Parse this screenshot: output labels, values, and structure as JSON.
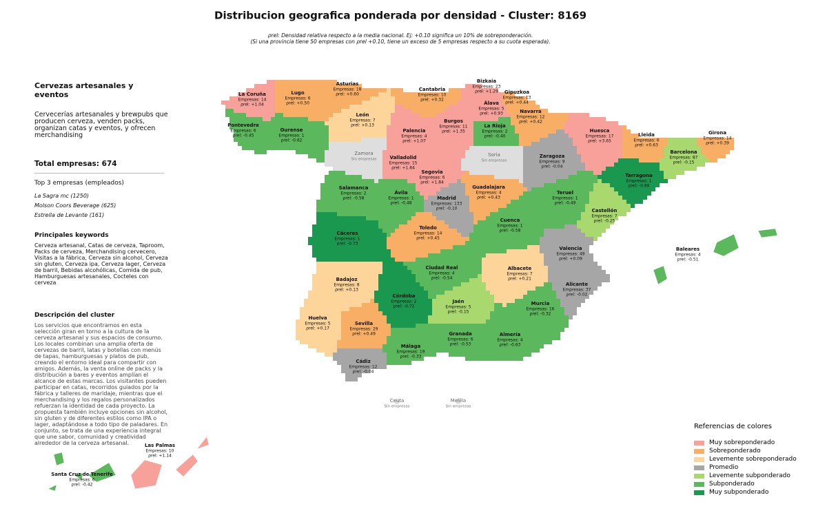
{
  "header": {
    "title": "Distribucion geografica ponderada por densidad - Cluster: 8169",
    "subtitle": [
      "ρrel: Densidad relativa respecto a la media nacional. Ej: +0.10 significa un 10% de sobreponderación.",
      "(Si una provincia tiene 50 empresas con ρrel +0.10, tiene un exceso de 5 empresas respecto a su cuota esperada)."
    ]
  },
  "sidebar": {
    "title": "Cervezas artesanales y eventos",
    "summary": "Cervecerías artesanales y brewpubs que producen cerveza, venden packs, organizan catas y eventos, y ofrecen merchandising",
    "total": "Total empresas: 674",
    "top_heading": "Top 3 empresas (empleados)",
    "top": [
      "La Sagra mc (1250)",
      "Molson Coors Beverage (625)",
      "Estrella de Levante (161)"
    ],
    "keywords_heading": "Principales keywords",
    "keywords": "Cerveza artesanal, Catas de cerveza, Taproom, Packs de cerveza, Merchandising cervecero, Visitas a la fábrica, Cerveza sin alcohol, Cerveza sin gluten, Cerveza ipa, Cerveza lager, Cerveza de barril, Bebidas alcohólicas, Comida de pub, Hamburguesas artesanales, Cocteles con cerveza",
    "description_heading": "Descripción del cluster",
    "description": "Los servicios que encontramos en esta selección giran en torno a la cultura de la cerveza artesanal y sus espacios de consumo. Los locales combinan una amplia oferta de cervezas de barril, latas y botellas con menús de tapas, hamburguesas y platos de pub, creando el entorno ideal para compartir con amigos. Además, la venta online de packs y la distribución a bares y eventos amplían el alcance de estas marcas. Los visitantes pueden participar en catas, recorridos guiados por la fábrica y talleres de maridaje, mientras que el merchandising y los regalos personalizados refuerzan la identidad de cada proyecto. La propuesta también incluye opciones sin alcohol, sin gluten y de diferentes estilos como IPA o lager, adaptándose a todo tipo de paladares. En conjunto, se trata de una experiencia integral que une sabor, comunidad y creatividad alrededor de la cerveza artesanal."
  },
  "provinces": [
    {
      "name": "La Coruña",
      "empresas": "Empresas: 14",
      "rho": "ρrel: +1.04",
      "color": "#f7a19a"
    },
    {
      "name": "Lugo",
      "empresas": "Empresas: 6",
      "rho": "ρrel: +0.50",
      "color": "#f9ae65"
    },
    {
      "name": "Asturias",
      "empresas": "Empresas: 18",
      "rho": "ρrel: +0.60",
      "color": "#f9ae65"
    },
    {
      "name": "Cantabria",
      "empresas": "Empresas: 10",
      "rho": "ρrel: +0.32",
      "color": "#f9ae65"
    },
    {
      "name": "Bizkaia",
      "empresas": "Empresas: 23",
      "rho": "ρrel: +1.29",
      "color": "#f7a19a"
    },
    {
      "name": "Gipuzkoa",
      "empresas": "Empresas: 13",
      "rho": "ρrel: +0.44",
      "color": "#f9ae65"
    },
    {
      "name": "Álava",
      "empresas": "Empresas: 5",
      "rho": "ρrel: +0.93",
      "color": "#f7a19a"
    },
    {
      "name": "Navarra",
      "empresas": "Empresas: 12",
      "rho": "ρrel: +0.42",
      "color": "#f9ae65"
    },
    {
      "name": "Pontevedra",
      "empresas": "Empresas: 6",
      "rho": "ρrel: -0.45",
      "color": "#5cb85c"
    },
    {
      "name": "Ourense",
      "empresas": "Empresas: 1",
      "rho": "ρrel: -0.62",
      "color": "#5cb85c"
    },
    {
      "name": "León",
      "empresas": "Empresas: 7",
      "rho": "ρrel: +0.13",
      "color": "#fdd499"
    },
    {
      "name": "Palencia",
      "empresas": "Empresas: 4",
      "rho": "ρrel: +1.07",
      "color": "#f7a19a"
    },
    {
      "name": "Burgos",
      "empresas": "Empresas: 11",
      "rho": "ρrel: +1.35",
      "color": "#f7a19a"
    },
    {
      "name": "La Rioja",
      "empresas": "Empresas: 2",
      "rho": "ρrel: -0.40",
      "color": "#5cb85c"
    },
    {
      "name": "Huesca",
      "empresas": "Empresas: 17",
      "rho": "ρrel: +3.65",
      "color": "#f7a19a"
    },
    {
      "name": "Lleida",
      "empresas": "Empresas: 6",
      "rho": "ρrel: +0.63",
      "color": "#f9ae65"
    },
    {
      "name": "Girona",
      "empresas": "Empresas: 14",
      "rho": "ρrel: +0.39",
      "color": "#f9ae65"
    },
    {
      "name": "Zamora",
      "empresas": "Sin empresas",
      "color": "#dedede"
    },
    {
      "name": "Soria",
      "empresas": "Sin empresas",
      "color": "#dedede"
    },
    {
      "name": "Valladolid",
      "empresas": "Empresas: 15",
      "rho": "ρrel: +1.84",
      "color": "#f7a19a"
    },
    {
      "name": "Zaragoza",
      "empresas": "Empresas: 9",
      "rho": "ρrel: -0.04",
      "color": "#a6a6a6"
    },
    {
      "name": "Barcelona",
      "empresas": "Empresas: 87",
      "rho": "ρrel: -0.15",
      "color": "#a8d86e"
    },
    {
      "name": "Segovia",
      "empresas": "Empresas: 6",
      "rho": "ρrel: +1.84",
      "color": "#f7a19a"
    },
    {
      "name": "Tarragona",
      "empresas": "Empresas: 1",
      "rho": "ρrel: -0.89",
      "color": "#1a9850"
    },
    {
      "name": "Salamanca",
      "empresas": "Empresas: 2",
      "rho": "ρrel: -0.58",
      "color": "#5cb85c"
    },
    {
      "name": "Ávila",
      "empresas": "Empresas: 1",
      "rho": "ρrel: -0.48",
      "color": "#5cb85c"
    },
    {
      "name": "Guadalajara",
      "empresas": "Empresas: 4",
      "rho": "ρrel: +0.43",
      "color": "#f9ae65"
    },
    {
      "name": "Madrid",
      "empresas": "Empresas: 133",
      "rho": "ρrel: -0.10",
      "color": "#a6a6a6"
    },
    {
      "name": "Teruel",
      "empresas": "Empresas: 1",
      "rho": "ρrel: -0.49",
      "color": "#5cb85c"
    },
    {
      "name": "Castellón",
      "empresas": "Empresas: 7",
      "rho": "ρrel: -0.25",
      "color": "#a8d86e"
    },
    {
      "name": "Cáceres",
      "empresas": "Empresas: 1",
      "rho": "ρrel: -0.73",
      "color": "#1a9850"
    },
    {
      "name": "Toledo",
      "empresas": "Empresas: 14",
      "rho": "ρrel: +0.45",
      "color": "#f9ae65"
    },
    {
      "name": "Cuenca",
      "empresas": "Empresas: 1",
      "rho": "ρrel: -0.58",
      "color": "#5cb85c"
    },
    {
      "name": "Valencia",
      "empresas": "Empresas: 49",
      "rho": "ρrel: +0.09",
      "color": "#a6a6a6"
    },
    {
      "name": "Baleares",
      "empresas": "Empresas: 4",
      "rho": "ρrel: -0.51",
      "color": "#5cb85c"
    },
    {
      "name": "Ciudad Real",
      "empresas": "Empresas: 4",
      "rho": "ρrel: -0.54",
      "color": "#5cb85c"
    },
    {
      "name": "Albacete",
      "empresas": "Empresas: 7",
      "rho": "ρrel: +0.21",
      "color": "#fdd499"
    },
    {
      "name": "Badajoz",
      "empresas": "Empresas: 8",
      "rho": "ρrel: +0.13",
      "color": "#fdd499"
    },
    {
      "name": "Alicante",
      "empresas": "Empresas: 37",
      "rho": "ρrel: -0.02",
      "color": "#a6a6a6"
    },
    {
      "name": "Córdoba",
      "empresas": "Empresas: 2",
      "rho": "ρrel: -0.72",
      "color": "#1a9850"
    },
    {
      "name": "Jaén",
      "empresas": "Empresas: 5",
      "rho": "ρrel: -0.15",
      "color": "#a8d86e"
    },
    {
      "name": "Murcia",
      "empresas": "Empresas: 16",
      "rho": "ρrel: -0.32",
      "color": "#5cb85c"
    },
    {
      "name": "Huelva",
      "empresas": "Empresas: 5",
      "rho": "ρrel: +0.17",
      "color": "#fdd499"
    },
    {
      "name": "Sevilla",
      "empresas": "Empresas: 29",
      "rho": "ρrel: +0.49",
      "color": "#f9ae65"
    },
    {
      "name": "Granada",
      "empresas": "Empresas: 6",
      "rho": "ρrel: -0.53",
      "color": "#5cb85c"
    },
    {
      "name": "Almería",
      "empresas": "Empresas: 4",
      "rho": "ρrel: -0.63",
      "color": "#5cb85c"
    },
    {
      "name": "Málaga",
      "empresas": "Empresas: 19",
      "rho": "ρrel: -0.33",
      "color": "#5cb85c"
    },
    {
      "name": "Cádiz",
      "empresas": "Empresas: 12",
      "rho": "ρrel: -0.04",
      "color": "#a6a6a6"
    },
    {
      "name": "Ceuta",
      "empresas": "Sin empresas",
      "color": "#dedede"
    },
    {
      "name": "Melilla",
      "empresas": "Sin empresas",
      "color": "#dedede"
    },
    {
      "name": "Las Palmas",
      "empresas": "Empresas: 10",
      "rho": "ρrel: +1.14",
      "color": "#f7a19a"
    },
    {
      "name": "Santa Cruz de Tenerife",
      "empresas": "Empresas: 6",
      "rho": "ρrel: -0.42",
      "color": "#5cb85c"
    }
  ],
  "legend": {
    "title": "Referencias de colores",
    "items": [
      {
        "label": "Muy sobreponderado",
        "color": "#f7a19a"
      },
      {
        "label": "Sobreponderado",
        "color": "#f9ae65"
      },
      {
        "label": "Levemente sobreponderado",
        "color": "#fdd499"
      },
      {
        "label": "Promedio",
        "color": "#a6a6a6"
      },
      {
        "label": "Levemente subponderado",
        "color": "#a8d86e"
      },
      {
        "label": "Subponderado",
        "color": "#5cb85c"
      },
      {
        "label": "Muy subponderado",
        "color": "#1a9850"
      }
    ]
  }
}
